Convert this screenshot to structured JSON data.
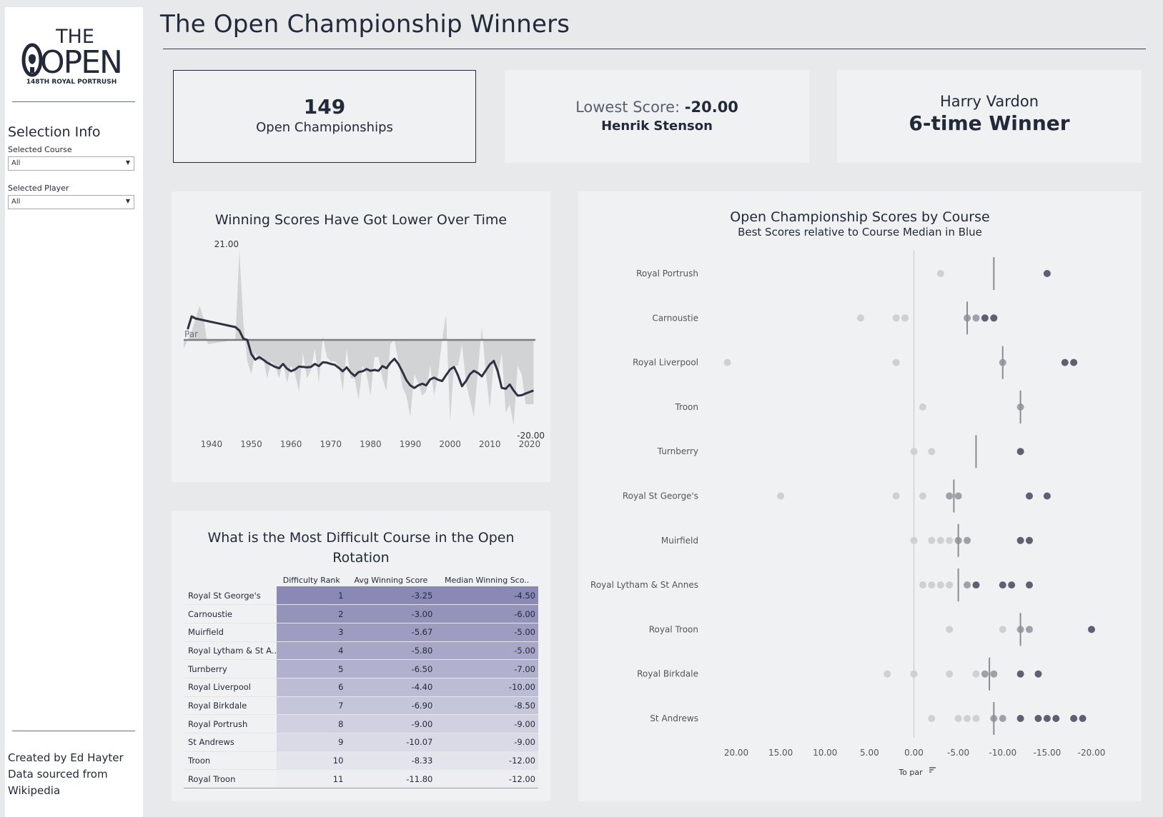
{
  "header": {
    "title": "The Open Championship Winners"
  },
  "logo": {
    "line1": "THE",
    "line2": "OPEN",
    "line3": "148TH ROYAL PORTRUSH"
  },
  "sidebar": {
    "selection_title": "Selection Info",
    "course_label": "Selected Course",
    "course_value": "All",
    "player_label": "Selected Player",
    "player_value": "All",
    "credits_line1": "Created by Ed Hayter",
    "credits_line2": "Data sourced from",
    "credits_line3": "Wikipedia"
  },
  "kpis": {
    "count_value": "149",
    "count_label": "Open Championships",
    "lowest_label": "Lowest Score:",
    "lowest_value": "-20.00",
    "lowest_player": "Henrik Stenson",
    "top_player": "Harry Vardon",
    "top_wins": "6-time Winner"
  },
  "colors": {
    "line": "#2d3142",
    "area": "#d2d3d5",
    "par": "#7b7d82",
    "median_tick": "#8a8c91",
    "dot_light": "#cfd0d3",
    "table_dark": "#8a89b5",
    "table_light": "#eeeef2"
  },
  "chart_data": [
    {
      "type": "area",
      "title": "Winning Scores Have Got Lower Over Time",
      "xlabel": "",
      "ylabel": "",
      "xlim": [
        1933,
        2022
      ],
      "ylim": [
        -22,
        23
      ],
      "x_ticks": [
        1940,
        1950,
        1960,
        1970,
        1980,
        1990,
        2000,
        2010,
        2020
      ],
      "par_label": "Par",
      "par_value": 0,
      "max_label": "21.00",
      "min_label": "-20.00",
      "series": [
        {
          "kind": "annual",
          "x": [
            1930,
            1933,
            1935,
            1937,
            1938,
            1939,
            1946,
            1947,
            1948,
            1949,
            1950,
            1951,
            1952,
            1953,
            1954,
            1955,
            1956,
            1957,
            1958,
            1959,
            1960,
            1961,
            1962,
            1963,
            1964,
            1965,
            1966,
            1967,
            1968,
            1969,
            1970,
            1971,
            1972,
            1973,
            1974,
            1975,
            1976,
            1977,
            1978,
            1979,
            1980,
            1981,
            1982,
            1983,
            1984,
            1985,
            1986,
            1987,
            1988,
            1989,
            1990,
            1991,
            1992,
            1993,
            1994,
            1995,
            1996,
            1997,
            1998,
            1999,
            2000,
            2001,
            2002,
            2003,
            2004,
            2005,
            2006,
            2007,
            2008,
            2009,
            2010,
            2011,
            2012,
            2013,
            2014,
            2015,
            2016,
            2017,
            2018,
            2019,
            2021
          ],
          "values": [
            0,
            -2,
            2,
            8,
            5,
            -1,
            0,
            21,
            4,
            -5,
            -8,
            -3,
            -5,
            -4,
            -9,
            -5,
            -6,
            -9,
            -5,
            -10,
            -6,
            -8,
            -12,
            -3,
            -9,
            -7,
            -2,
            -10,
            1,
            -4,
            -5,
            -5,
            -6,
            -12,
            -2,
            -9,
            -9,
            -14,
            -6,
            -8,
            -13,
            -4,
            -4,
            -9,
            -12,
            -1,
            0,
            -5,
            -11,
            -13,
            -18,
            -8,
            -10,
            -13,
            -12,
            -6,
            -13,
            -8,
            0,
            6,
            -19,
            -6,
            -6,
            -1,
            -10,
            -14,
            -18,
            -7,
            3,
            -8,
            -16,
            -5,
            -9,
            -3,
            -17,
            -15,
            -20,
            -6,
            -8,
            -15,
            -15
          ]
        },
        {
          "kind": "rolling_average",
          "x": [
            1934,
            1935,
            1936,
            1938,
            1940,
            1942,
            1944,
            1946,
            1947,
            1948,
            1949,
            1950,
            1951,
            1952,
            1953,
            1954,
            1955,
            1956,
            1957,
            1958,
            1959,
            1960,
            1961,
            1962,
            1963,
            1964,
            1965,
            1966,
            1967,
            1968,
            1969,
            1970,
            1971,
            1972,
            1973,
            1974,
            1975,
            1976,
            1977,
            1978,
            1979,
            1980,
            1981,
            1982,
            1983,
            1984,
            1985,
            1986,
            1987,
            1988,
            1989,
            1990,
            1991,
            1992,
            1993,
            1994,
            1995,
            1996,
            1997,
            1998,
            1999,
            2000,
            2001,
            2002,
            2003,
            2004,
            2005,
            2006,
            2007,
            2008,
            2009,
            2010,
            2011,
            2012,
            2013,
            2014,
            2015,
            2016,
            2017,
            2018,
            2019,
            2021
          ],
          "values": [
            2.5,
            5.5,
            5.0,
            4.6,
            4.2,
            3.8,
            3.4,
            3.0,
            2.2,
            0.3,
            0.0,
            -3.3,
            -4.6,
            -4.0,
            -4.6,
            -5.3,
            -5.8,
            -6.3,
            -6.6,
            -5.6,
            -6.7,
            -7.3,
            -6.9,
            -6.2,
            -6.3,
            -6.4,
            -6.3,
            -5.6,
            -6.1,
            -5.2,
            -5.3,
            -5.6,
            -5.8,
            -6.5,
            -7.3,
            -6.4,
            -7.6,
            -8.4,
            -7.5,
            -7.3,
            -6.8,
            -7.2,
            -7.0,
            -7.2,
            -6.1,
            -6.6,
            -5.3,
            -4.4,
            -5.6,
            -7.4,
            -9.4,
            -10.6,
            -11.2,
            -10.6,
            -10.2,
            -10.6,
            -9.2,
            -8.8,
            -9.3,
            -9.6,
            -8.2,
            -6.9,
            -6.3,
            -8.3,
            -10.8,
            -9.6,
            -8.0,
            -7.2,
            -7.7,
            -8.5,
            -7.1,
            -5.7,
            -4.9,
            -7.3,
            -11.2,
            -11.4,
            -10.4,
            -11.8,
            -13.0,
            -12.9,
            -12.5,
            -11.8
          ]
        }
      ]
    },
    {
      "type": "table",
      "title": "What is the Most Difficult Course in the Open Rotation",
      "columns": [
        "",
        "Difficulty Rank",
        "Avg Winning Score",
        "Median Winning Sco.."
      ],
      "rows": [
        {
          "course": "Royal St George's",
          "rank": "1",
          "avg": "-3.25",
          "median": "-4.50"
        },
        {
          "course": "Carnoustie",
          "rank": "2",
          "avg": "-3.00",
          "median": "-6.00"
        },
        {
          "course": "Muirfield",
          "rank": "3",
          "avg": "-5.67",
          "median": "-5.00"
        },
        {
          "course": "Royal Lytham & St A..",
          "rank": "4",
          "avg": "-5.80",
          "median": "-5.00"
        },
        {
          "course": "Turnberry",
          "rank": "5",
          "avg": "-6.50",
          "median": "-7.00"
        },
        {
          "course": "Royal Liverpool",
          "rank": "6",
          "avg": "-4.40",
          "median": "-10.00"
        },
        {
          "course": "Royal Birkdale",
          "rank": "7",
          "avg": "-6.90",
          "median": "-8.50"
        },
        {
          "course": "Royal Portrush",
          "rank": "8",
          "avg": "-9.00",
          "median": "-9.00"
        },
        {
          "course": "St Andrews",
          "rank": "9",
          "avg": "-10.07",
          "median": "-9.00"
        },
        {
          "course": "Troon",
          "rank": "10",
          "avg": "-8.33",
          "median": "-12.00"
        },
        {
          "course": "Royal Troon",
          "rank": "11",
          "avg": "-11.80",
          "median": "-12.00"
        }
      ]
    },
    {
      "type": "scatter",
      "title": "Open Championship Scores by Course",
      "subtitle": "Best Scores relative to Course Median in Blue",
      "xlabel": "To par",
      "x_reversed": true,
      "xlim": [
        22,
        -22
      ],
      "x_ticks": [
        "20.00",
        "15.00",
        "10.00",
        "5.00",
        "0.00",
        "-5.00",
        "-10.00",
        "-15.00",
        "-20.00"
      ],
      "categories": [
        "Royal Portrush",
        "Carnoustie",
        "Royal Liverpool",
        "Troon",
        "Turnberry",
        "Royal St George's",
        "Muirfield",
        "Royal Lytham & St Annes",
        "Royal Troon",
        "Royal Birkdale",
        "St Andrews"
      ],
      "medians": [
        -9,
        -6,
        -10,
        -12,
        -7,
        -4.5,
        -5,
        -5,
        -12,
        -8.5,
        -9
      ],
      "points": [
        [
          -3,
          -15
        ],
        [
          6,
          2,
          1,
          -6,
          -7,
          -8,
          -9
        ],
        [
          21,
          2,
          -10,
          -17,
          -18
        ],
        [
          -1,
          -12
        ],
        [
          0,
          -2,
          -12
        ],
        [
          15,
          2,
          -1,
          -4,
          -5,
          -13,
          -15
        ],
        [
          0,
          -2,
          -3,
          -4,
          -5,
          -6,
          -12,
          -13
        ],
        [
          -1,
          -2,
          -3,
          -4,
          -6,
          -7,
          -10,
          -11,
          -13
        ],
        [
          -4,
          -10,
          -12,
          -13,
          -20
        ],
        [
          3,
          0,
          -4,
          -7,
          -8,
          -9,
          -12,
          -14
        ],
        [
          -2,
          -5,
          -6,
          -7,
          -9,
          -10,
          -12,
          -14,
          -15,
          -16,
          -18,
          -19
        ]
      ],
      "point_colors": {
        "light": "#cfd0d3",
        "mid": "#9fa0a8",
        "dark": "#5d5f73"
      }
    }
  ]
}
